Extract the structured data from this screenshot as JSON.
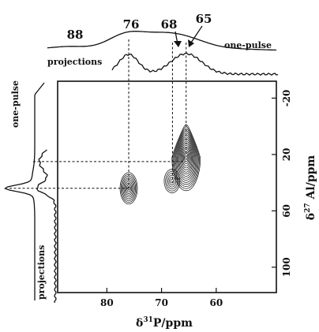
{
  "chart_data": {
    "type": "contour",
    "xlabel": "δ31P/ppm",
    "ylabel": "δ27Al/ppm",
    "x_range": [
      89,
      49
    ],
    "y_range": [
      -32,
      118
    ],
    "x_ticks": [
      80,
      70,
      60
    ],
    "y_ticks": [
      -20,
      20,
      60,
      100
    ],
    "x_tick_labels": [
      "80",
      "70",
      "60"
    ],
    "y_tick_labels": [
      "-20",
      "20",
      "60",
      "100"
    ],
    "top_projection_labels": [
      "one-pulse",
      "projections"
    ],
    "left_projection_labels": [
      "one-pulse",
      "projections"
    ],
    "peak_labels": [
      {
        "label": "88",
        "p": 88
      },
      {
        "label": "76",
        "p": 76
      },
      {
        "label": "68",
        "p": 68
      },
      {
        "label": "65",
        "p": 65
      }
    ],
    "cross_peaks": [
      {
        "p": 76,
        "al": 44
      },
      {
        "p": 65.5,
        "al": 20
      },
      {
        "p": 67.5,
        "al": 40
      }
    ],
    "guides": {
      "vertical_p": [
        76,
        68,
        65.5
      ],
      "horizontal_al": [
        25,
        44
      ]
    }
  }
}
